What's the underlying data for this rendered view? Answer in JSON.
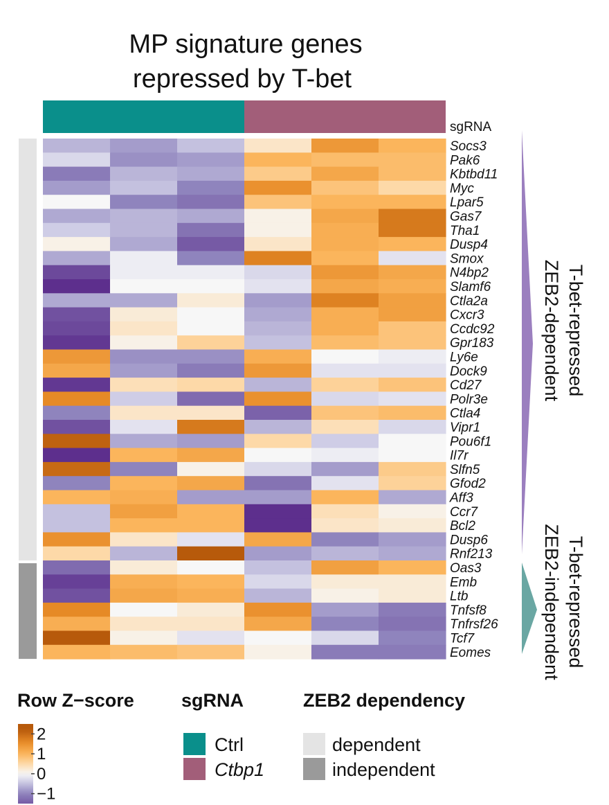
{
  "chart_data": {
    "type": "heatmap",
    "title_lines": [
      "MP signature genes",
      "repressed by T-bet"
    ],
    "column_annotation": {
      "label": "sgRNA",
      "groups": [
        {
          "name": "Ctrl",
          "italic": false,
          "color": "#0a8f8b",
          "columns": 3
        },
        {
          "name": "Ctbp1",
          "italic": true,
          "color": "#a25e79",
          "columns": 3
        }
      ]
    },
    "row_annotation": {
      "label": "ZEB2 dependency",
      "groups": [
        {
          "name": "dependent",
          "color": "#e4e4e4",
          "rows": 30
        },
        {
          "name": "independent",
          "color": "#9a9a9a",
          "rows": 7
        }
      ]
    },
    "side_labels": [
      {
        "line1": "T-bet-repressed",
        "line2": "ZEB2-dependent",
        "color": "#9b7fbf"
      },
      {
        "line1": "T-bet-repressed",
        "line2": "ZEB2-independent",
        "color": "#6aa7a3"
      }
    ],
    "genes": [
      "Socs3",
      "Pak6",
      "Kbtbd11",
      "Myc",
      "Lpar5",
      "Gas7",
      "Tha1",
      "Dusp4",
      "Smox",
      "N4bp2",
      "Slamf6",
      "Ctla2a",
      "Cxcr3",
      "Ccdc92",
      "Gpr183",
      "Ly6e",
      "Dock9",
      "Cd27",
      "Polr3e",
      "Ctla4",
      "Vipr1",
      "Pou6f1",
      "Il7r",
      "Slfn5",
      "Gfod2",
      "Aff3",
      "Ccr7",
      "Bcl2",
      "Dusp6",
      "Rnf213",
      "Oas3",
      "Emb",
      "Ltb",
      "Tnfsf8",
      "Tnfrsf26",
      "Tcf7",
      "Eomes"
    ],
    "values": [
      [
        -0.6,
        -0.8,
        -0.5,
        0.3,
        1.4,
        1.0
      ],
      [
        -0.3,
        -0.9,
        -0.8,
        1.0,
        0.9,
        0.9
      ],
      [
        -1.1,
        -0.6,
        -0.7,
        0.7,
        1.2,
        0.9
      ],
      [
        -0.8,
        -0.5,
        -1.0,
        1.5,
        0.8,
        0.5
      ],
      [
        0.0,
        -1.0,
        -1.2,
        0.8,
        1.0,
        1.0
      ],
      [
        -0.7,
        -0.6,
        -0.7,
        0.1,
        1.2,
        1.8
      ],
      [
        -0.4,
        -0.6,
        -1.2,
        0.1,
        1.1,
        1.8
      ],
      [
        0.1,
        -0.7,
        -1.5,
        0.3,
        1.1,
        1.0
      ],
      [
        -0.7,
        -0.1,
        -1.0,
        1.7,
        1.0,
        -0.2
      ],
      [
        -1.7,
        -0.1,
        -0.1,
        -0.3,
        1.4,
        1.2
      ],
      [
        -2.0,
        0.0,
        0.0,
        -0.2,
        1.2,
        1.1
      ],
      [
        -0.7,
        -0.7,
        0.2,
        -0.8,
        1.7,
        1.3
      ],
      [
        -1.6,
        0.2,
        0.0,
        -0.7,
        1.1,
        1.3
      ],
      [
        -1.7,
        0.3,
        0.0,
        -0.6,
        1.1,
        0.8
      ],
      [
        -1.9,
        0.1,
        0.6,
        -0.5,
        0.9,
        0.8
      ],
      [
        1.4,
        -0.9,
        -0.9,
        1.1,
        0.0,
        -0.1
      ],
      [
        1.2,
        -0.8,
        -1.1,
        1.4,
        -0.2,
        -0.2
      ],
      [
        -1.9,
        0.4,
        0.5,
        -0.6,
        0.6,
        0.8
      ],
      [
        1.6,
        -0.4,
        -1.3,
        1.5,
        -0.3,
        -0.2
      ],
      [
        -1.0,
        0.3,
        0.3,
        -1.4,
        0.8,
        0.9
      ],
      [
        -1.6,
        -0.2,
        1.8,
        -0.6,
        0.4,
        -0.3
      ],
      [
        2.1,
        -0.7,
        -0.8,
        0.5,
        -0.4,
        0.0
      ],
      [
        -2.0,
        1.0,
        1.2,
        0.0,
        -0.1,
        0.0
      ],
      [
        2.0,
        -1.0,
        0.1,
        -0.3,
        -0.8,
        0.7
      ],
      [
        -1.0,
        1.0,
        1.2,
        -1.2,
        -0.2,
        0.6
      ],
      [
        1.0,
        1.1,
        -0.8,
        -0.8,
        1.0,
        -0.7
      ],
      [
        -0.5,
        1.3,
        1.0,
        -2.0,
        0.4,
        0.1
      ],
      [
        -0.5,
        1.0,
        1.0,
        -2.0,
        0.3,
        0.2
      ],
      [
        1.5,
        0.3,
        -0.2,
        1.2,
        -1.0,
        -0.8
      ],
      [
        0.5,
        -0.6,
        2.3,
        -0.8,
        -0.6,
        -0.7
      ],
      [
        -1.3,
        0.2,
        0.0,
        -0.5,
        1.3,
        1.0
      ],
      [
        -1.8,
        1.1,
        1.0,
        -0.3,
        0.2,
        0.2
      ],
      [
        -1.6,
        1.2,
        1.1,
        -0.6,
        0.1,
        0.2
      ],
      [
        1.6,
        0.0,
        0.2,
        1.5,
        -0.8,
        -1.1
      ],
      [
        1.1,
        0.3,
        0.3,
        1.2,
        -1.0,
        -1.2
      ],
      [
        2.2,
        0.1,
        -0.2,
        0.0,
        -0.3,
        -1.0
      ],
      [
        1.0,
        0.9,
        0.8,
        0.1,
        -1.1,
        -1.1
      ]
    ],
    "color_scale": {
      "title": "Row Z−score",
      "min": -1.5,
      "max": 2.5,
      "stops": [
        {
          "v": -2.0,
          "c": "#5d2f8d"
        },
        {
          "v": -1.0,
          "c": "#8f84bd"
        },
        {
          "v": -0.4,
          "c": "#cfcde6"
        },
        {
          "v": 0.0,
          "c": "#f7f7f7"
        },
        {
          "v": 0.5,
          "c": "#fdd9a8"
        },
        {
          "v": 1.0,
          "c": "#fbb55c"
        },
        {
          "v": 1.6,
          "c": "#e68a26"
        },
        {
          "v": 2.2,
          "c": "#b75a0b"
        }
      ],
      "ticks": [
        {
          "v": 2,
          "label": "2"
        },
        {
          "v": 1,
          "label": "1"
        },
        {
          "v": 0,
          "label": "0"
        },
        {
          "v": -1,
          "label": "−1"
        }
      ]
    }
  }
}
